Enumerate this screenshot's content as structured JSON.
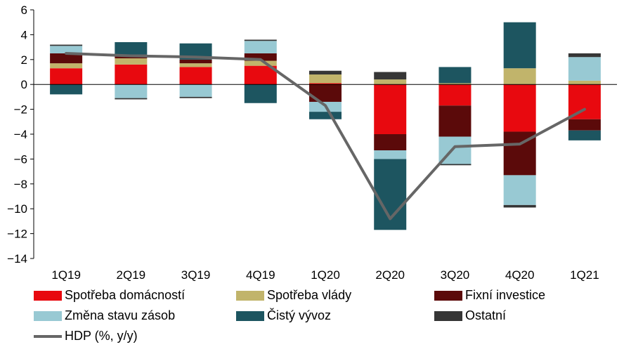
{
  "chart_data": {
    "type": "bar",
    "stacked": true,
    "categories": [
      "1Q19",
      "2Q19",
      "3Q19",
      "4Q19",
      "1Q20",
      "2Q20",
      "3Q20",
      "4Q20",
      "1Q21"
    ],
    "ylim": [
      -14,
      6
    ],
    "yticks": [
      6,
      4,
      2,
      0,
      -2,
      -4,
      -6,
      -8,
      -10,
      -12,
      -14
    ],
    "grid": false,
    "legend_position": "bottom",
    "series": [
      {
        "name": "Spotřeba domácností",
        "color": "#e8090f",
        "values": [
          1.3,
          1.6,
          1.4,
          1.5,
          0.1,
          -4.0,
          -1.7,
          -3.8,
          -2.8
        ]
      },
      {
        "name": "Spotřeba vlády",
        "color": "#c1b46b",
        "values": [
          0.4,
          0.5,
          0.3,
          0.4,
          0.7,
          0.4,
          0.1,
          1.3,
          0.3
        ]
      },
      {
        "name": "Fixní investice",
        "color": "#5b0a0a",
        "values": [
          0.8,
          0.3,
          0.3,
          0.6,
          -1.4,
          -1.3,
          -2.5,
          -3.5,
          -0.9
        ]
      },
      {
        "name": "Změna stavu zásob",
        "color": "#98c9d3",
        "values": [
          0.6,
          -1.1,
          -1.0,
          1.0,
          -0.8,
          -0.7,
          -2.2,
          -2.4,
          1.9
        ]
      },
      {
        "name": "Čistý vývoz",
        "color": "#1d5560",
        "values": [
          -0.8,
          1.0,
          1.3,
          -1.5,
          -0.6,
          -5.7,
          1.3,
          3.7,
          -0.8
        ]
      },
      {
        "name": "Ostatní",
        "color": "#363636",
        "values": [
          0.1,
          -0.1,
          -0.1,
          0.1,
          0.3,
          0.6,
          -0.1,
          -0.2,
          0.3
        ]
      }
    ],
    "line": {
      "name": "HDP (%, y/y)",
      "color": "#666666",
      "values": [
        2.5,
        2.3,
        2.2,
        2.0,
        -1.7,
        -10.8,
        -5.0,
        -4.8,
        -2.0
      ]
    }
  },
  "legend": {
    "items": [
      "Spotřeba domácností",
      "Spotřeba vlády",
      "Fixní investice",
      "Změna stavu zásob",
      "Čistý vývoz",
      "Ostatní",
      "HDP (%, y/y)"
    ]
  }
}
